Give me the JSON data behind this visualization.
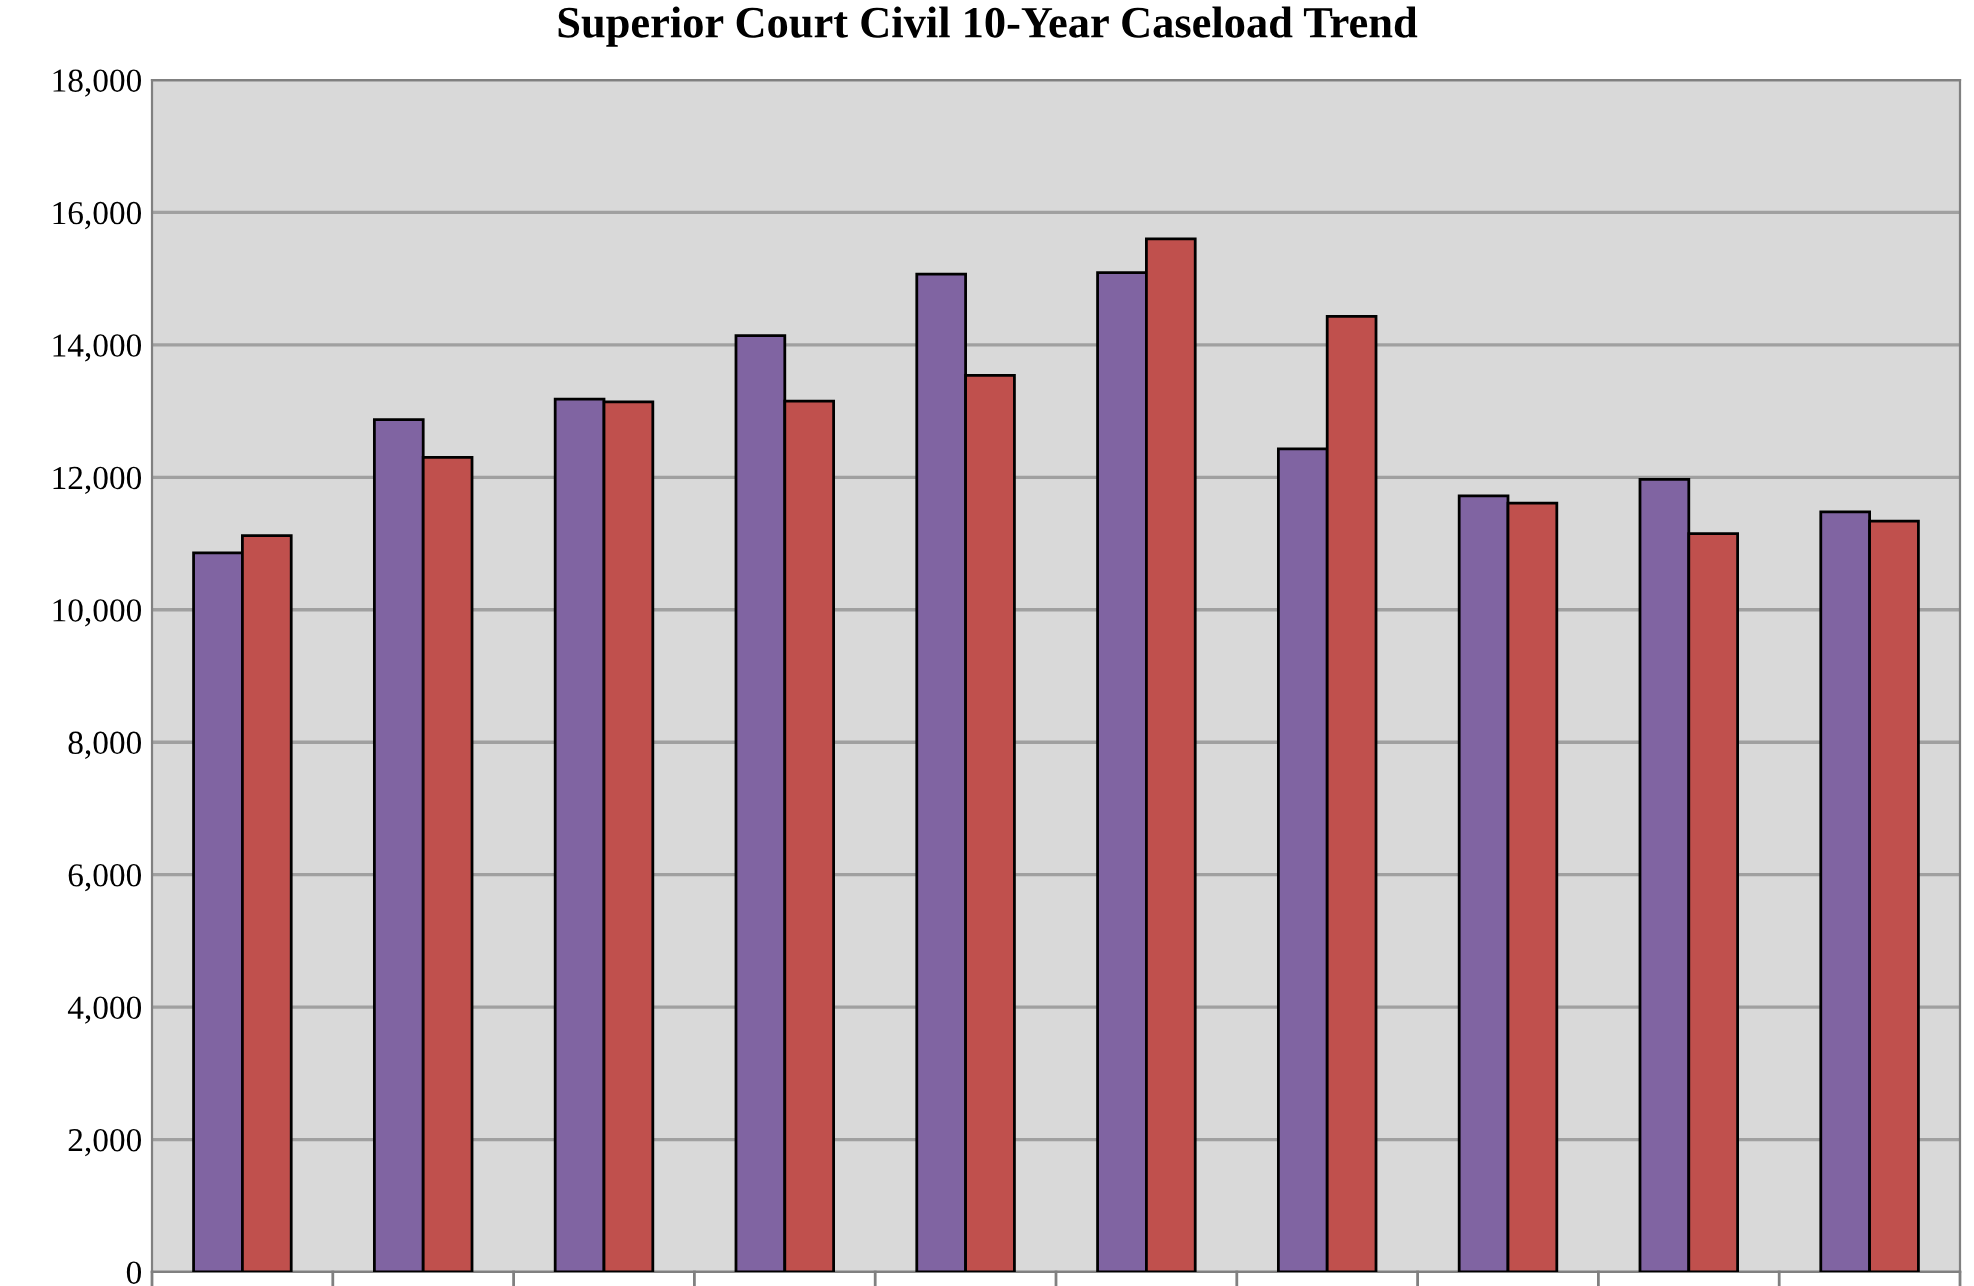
{
  "chart_data": {
    "type": "bar",
    "title": "Superior Court Civil 10-Year Caseload Trend",
    "categories": [
      null,
      null,
      null,
      null,
      null,
      null,
      null,
      null,
      null,
      null
    ],
    "series": [
      {
        "color": "#8064a2",
        "values": [
          10860,
          12870,
          13180,
          14140,
          15070,
          15090,
          12430,
          11720,
          11970,
          11480
        ]
      },
      {
        "color": "#c0504d",
        "values": [
          11120,
          12300,
          13140,
          13150,
          13540,
          15600,
          14430,
          11610,
          11150,
          11340
        ]
      }
    ],
    "ylim": [
      0,
      18000
    ],
    "yticks": [
      {
        "value": 0,
        "label": "0"
      },
      {
        "value": 2000,
        "label": "2,000"
      },
      {
        "value": 4000,
        "label": "4,000"
      },
      {
        "value": 6000,
        "label": "6,000"
      },
      {
        "value": 8000,
        "label": "8,000"
      },
      {
        "value": 10000,
        "label": "10,000"
      },
      {
        "value": 12000,
        "label": "12,000"
      },
      {
        "value": 14000,
        "label": "14,000"
      },
      {
        "value": 16000,
        "label": "16,000"
      },
      {
        "value": 18000,
        "label": "18,000"
      }
    ],
    "grid": "y"
  }
}
